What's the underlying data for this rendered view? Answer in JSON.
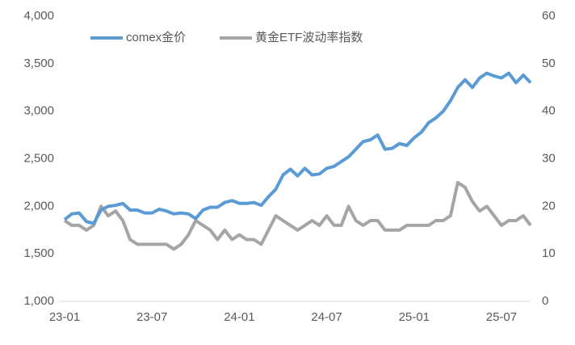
{
  "chart_data": {
    "type": "line",
    "categories": [
      "23-01",
      null,
      null,
      null,
      null,
      null,
      null,
      null,
      null,
      null,
      null,
      null,
      "23-07",
      null,
      null,
      null,
      null,
      null,
      null,
      null,
      null,
      null,
      null,
      null,
      "24-01",
      null,
      null,
      null,
      null,
      null,
      null,
      null,
      null,
      null,
      null,
      null,
      "24-07",
      null,
      null,
      null,
      null,
      null,
      null,
      null,
      null,
      null,
      null,
      null,
      "25-01",
      null,
      null,
      null,
      null,
      null,
      null,
      null,
      null,
      null,
      null,
      null,
      "25-07",
      null,
      null,
      null,
      null
    ],
    "series": [
      {
        "name": "comex金价",
        "color": "#5b9bd5",
        "values": [
          1860,
          1920,
          1930,
          1840,
          1820,
          1960,
          2000,
          2010,
          2030,
          1960,
          1960,
          1930,
          1930,
          1970,
          1950,
          1920,
          1930,
          1920,
          1870,
          1960,
          1990,
          1990,
          2040,
          2060,
          2030,
          2030,
          2040,
          2010,
          2100,
          2180,
          2330,
          2390,
          2320,
          2400,
          2330,
          2340,
          2400,
          2420,
          2470,
          2520,
          2600,
          2680,
          2700,
          2750,
          2600,
          2610,
          2660,
          2640,
          2720,
          2780,
          2880,
          2930,
          3000,
          3110,
          3250,
          3330,
          3250,
          3350,
          3400,
          3370,
          3350,
          3400,
          3300,
          3380,
          3300
        ]
      },
      {
        "name": "黄金ETF波动率指数",
        "color": "#a5a5a5",
        "axis": "y2",
        "values": [
          17,
          16,
          16,
          15,
          16,
          20,
          18,
          19,
          17,
          13,
          12,
          12,
          12,
          12,
          12,
          11,
          12,
          14,
          17,
          16,
          15,
          13,
          15,
          13,
          14,
          13,
          13,
          12,
          15,
          18,
          17,
          16,
          15,
          16,
          17,
          16,
          18,
          16,
          16,
          20,
          17,
          16,
          17,
          17,
          15,
          15,
          15,
          16,
          16,
          16,
          16,
          17,
          17,
          18,
          25,
          24,
          21,
          19,
          20,
          18,
          16,
          17,
          17,
          18,
          16
        ]
      }
    ],
    "ylim": [
      1000,
      4000
    ],
    "yticks": [
      {
        "value": 1000,
        "label": "1,000"
      },
      {
        "value": 1500,
        "label": "1,500"
      },
      {
        "value": 2000,
        "label": "2,000"
      },
      {
        "value": 2500,
        "label": "2,500"
      },
      {
        "value": 3000,
        "label": "3,000"
      },
      {
        "value": 3500,
        "label": "3,500"
      },
      {
        "value": 4000,
        "label": "4,000"
      }
    ],
    "y2lim": [
      0,
      60
    ],
    "y2ticks": [
      0,
      10,
      20,
      30,
      40,
      50,
      60
    ],
    "legend": "top"
  }
}
